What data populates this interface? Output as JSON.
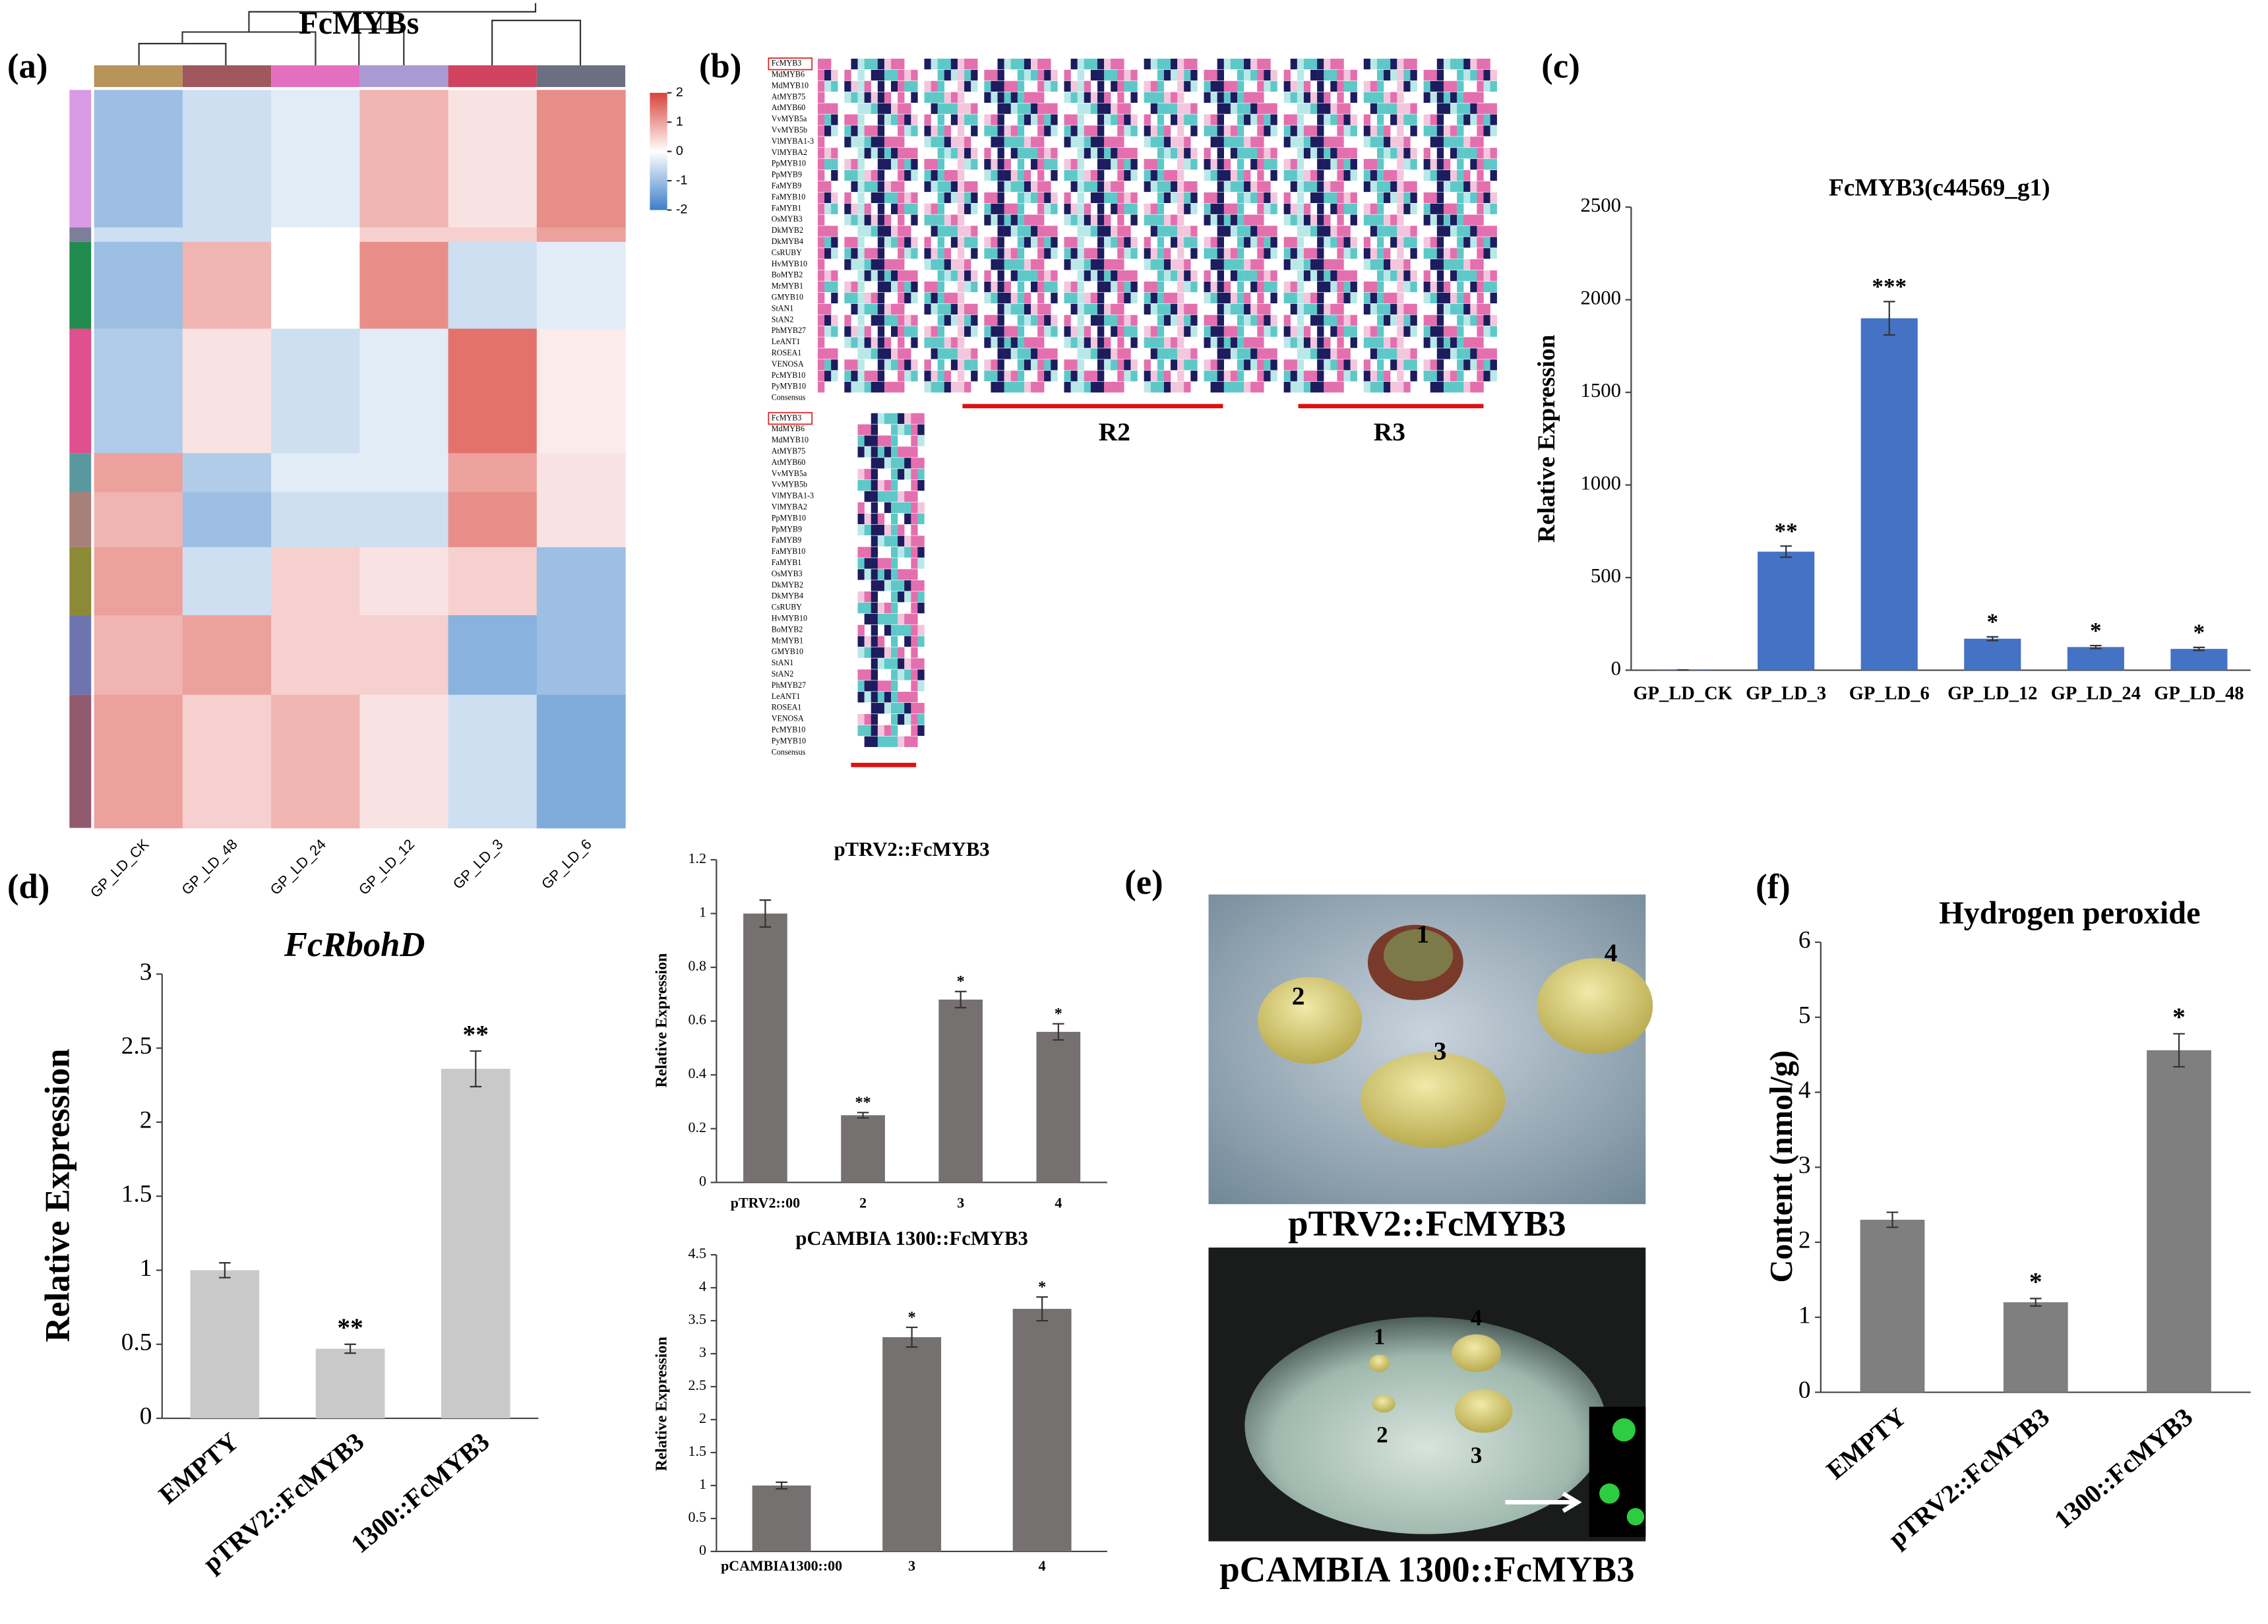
{
  "panel_labels": [
    "(a)",
    "(b)",
    "(c)",
    "(d)",
    "(e)",
    "(f)"
  ],
  "chart_data": [
    {
      "type": "heatmap",
      "title": "FcMYBs",
      "columns": [
        "GP_LD_CK",
        "GP_LD_48",
        "GP_LD_24",
        "GP_LD_12",
        "GP_LD_3",
        "GP_LD_6"
      ],
      "column_colors": [
        "#b8935a",
        "#a0585e",
        "#e26fc0",
        "#a99ad4",
        "#d0425d",
        "#6b6f82"
      ],
      "row_colors": [
        "#d99ae6",
        "#7d7f9a",
        "#228b4f",
        "#e0508e",
        "#5a98a0",
        "#a8807a",
        "#8c8a36",
        "#6e74ad",
        "#925a6e"
      ],
      "values": [
        [
          -1,
          -0.5,
          -0.3,
          0.8,
          0.3,
          1.2
        ],
        [
          -0.5,
          -0.5,
          0,
          0.5,
          0.5,
          1
        ],
        [
          -1,
          0.8,
          0,
          1.2,
          -0.5,
          -0.3
        ],
        [
          -0.8,
          0.3,
          -0.5,
          -0.3,
          1.5,
          0.2
        ],
        [
          1,
          -0.8,
          -0.3,
          -0.3,
          1,
          0.3
        ],
        [
          0.8,
          -1,
          -0.5,
          -0.5,
          1.2,
          0.3
        ],
        [
          1,
          -0.5,
          0.5,
          0.3,
          0.5,
          -1
        ],
        [
          0.8,
          1,
          0.5,
          0.5,
          -1.2,
          -1
        ],
        [
          1,
          0.5,
          0.8,
          0.3,
          -0.5,
          -1.3
        ]
      ],
      "colorbar_range": [
        -2,
        2
      ],
      "colorbar_ticks": [
        2,
        1,
        0,
        -1,
        -2
      ],
      "colormap": [
        "#3b7fc8",
        "#ffffff",
        "#d9433b"
      ]
    },
    {
      "type": "bar",
      "title": "FcMYB3(c44569_g1)",
      "ylabel": "Relative Expression",
      "categories": [
        "GP_LD_CK",
        "GP_LD_3",
        "GP_LD_6",
        "GP_LD_12",
        "GP_LD_24",
        "GP_LD_48"
      ],
      "values": [
        1,
        640,
        1900,
        170,
        125,
        115
      ],
      "errors": [
        0,
        30,
        90,
        10,
        8,
        8
      ],
      "annotations": [
        null,
        "**",
        "***",
        "*",
        "*",
        "*"
      ],
      "ylim": [
        0,
        2500
      ],
      "yticks": [
        0,
        500,
        1000,
        1500,
        2000,
        2500
      ],
      "color": "#4472c4"
    },
    {
      "type": "bar",
      "title": "FcRbohD",
      "ylabel": "Relative Expression",
      "categories": [
        "EMPTY",
        "pTRV2::FcMYB3",
        "1300::FcMYB3"
      ],
      "values": [
        1,
        0.47,
        2.36
      ],
      "errors": [
        0.05,
        0.03,
        0.12
      ],
      "annotations": [
        null,
        "**",
        "**"
      ],
      "ylim": [
        0,
        3
      ],
      "yticks": [
        0,
        0.5,
        1,
        1.5,
        2,
        2.5,
        3
      ],
      "color": "#c9c9c9"
    },
    {
      "type": "bar",
      "title": "pTRV2::FcMYB3",
      "ylabel": "Relative Expression",
      "categories": [
        "pTRV2::00",
        "2",
        "3",
        "4"
      ],
      "values": [
        1,
        0.25,
        0.68,
        0.56
      ],
      "errors": [
        0.05,
        0.01,
        0.03,
        0.03
      ],
      "annotations": [
        null,
        "**",
        "*",
        "*"
      ],
      "ylim": [
        0,
        1.2
      ],
      "yticks": [
        0,
        0.2,
        0.4,
        0.6,
        0.8,
        1,
        1.2
      ],
      "color": "#767171"
    },
    {
      "type": "bar",
      "title": "pCAMBIA 1300::FcMYB3",
      "ylabel": "Relative Expression",
      "categories": [
        "pCAMBIA1300::00",
        "3",
        "4"
      ],
      "values": [
        1,
        3.25,
        3.68
      ],
      "errors": [
        0.05,
        0.15,
        0.18
      ],
      "annotations": [
        null,
        "*",
        "*"
      ],
      "ylim": [
        0,
        4.5
      ],
      "yticks": [
        0,
        0.5,
        1,
        1.5,
        2,
        2.5,
        3,
        3.5,
        4,
        4.5
      ],
      "color": "#767171"
    },
    {
      "type": "bar",
      "title": "Hydrogen peroxide",
      "ylabel": "Content (nmol/g)",
      "categories": [
        "EMPTY",
        "pTRV2::FcMYB3",
        "1300::FcMYB3"
      ],
      "values": [
        2.3,
        1.2,
        4.56
      ],
      "errors": [
        0.1,
        0.05,
        0.22
      ],
      "annotations": [
        null,
        "*",
        "*"
      ],
      "ylim": [
        0,
        6
      ],
      "yticks": [
        0,
        1,
        2,
        3,
        4,
        5,
        6
      ],
      "color": "#7f7f7f"
    }
  ],
  "alignment": {
    "names": [
      "FcMYB3",
      "MdMYB6",
      "MdMYB10",
      "AtMYB75",
      "AtMYB60",
      "VvMYB5a",
      "VvMYB5b",
      "VlMYBA1-3",
      "VlMYBA2",
      "PpMYB10",
      "PpMYB9",
      "FaMYB9",
      "FaMYB10",
      "FaMYB1",
      "OsMYB3",
      "DkMYB2",
      "DkMYB4",
      "CsRUBY",
      "HvMYB10",
      "BoMYB2",
      "MrMYB1",
      "GMYB10",
      "StAN1",
      "StAN2",
      "PhMYB27",
      "LeANT1",
      "ROSEA1",
      "VENOSA",
      "PcMYB10",
      "PyMYB10",
      "Consensus"
    ],
    "motifs": [
      "R2",
      "R3"
    ]
  },
  "photos": {
    "captions": [
      "pTRV2::FcMYB3",
      "pCAMBIA 1300::FcMYB3"
    ],
    "labels_top": [
      "1",
      "2",
      "3",
      "4"
    ],
    "labels_bottom": [
      "1",
      "2",
      "3",
      "4"
    ]
  }
}
